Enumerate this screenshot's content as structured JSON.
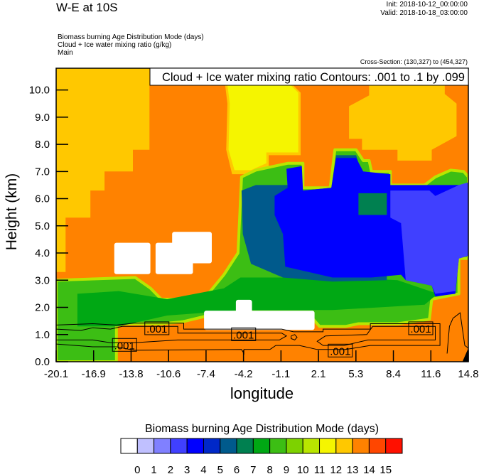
{
  "header": {
    "title": "W-E at 10S",
    "init": "Init: 2018-10-12_00:00:00",
    "valid": "Valid: 2018-10-18_03:00:00",
    "fields": [
      "Biomass burning Age Distribution Mode   (days)",
      "Cloud + Ice water mixing ratio   (g/kg)",
      "Main"
    ],
    "cross_section": "Cross-Section: (130,327) to (454,327)"
  },
  "chart_data": {
    "type": "heatmap",
    "title": "",
    "contour_title": "Cloud + Ice water mixing ratio Contours: .001 to .1 by .099",
    "xlabel": "longitude",
    "ylabel": "Height (km)",
    "xlim": [
      -20.1,
      14.8
    ],
    "ylim": [
      0.0,
      10.8
    ],
    "xticks": [
      "-20.1",
      "-16.9",
      "-13.8",
      "-10.6",
      "-7.4",
      "-4.2",
      "-1.1",
      "2.1",
      "5.3",
      "8.4",
      "11.6",
      "14.8"
    ],
    "yticks": [
      "0.0",
      "1.0",
      "2.0",
      "3.0",
      "4.0",
      "5.0",
      "6.0",
      "7.0",
      "8.0",
      "9.0",
      "10.0"
    ],
    "background_color": "#ff8200",
    "colorbar": {
      "title": "Biomass burning Age Distribution Mode  (days)",
      "labels": [
        "0",
        "1",
        "2",
        "3",
        "4",
        "5",
        "6",
        "7",
        "8",
        "9",
        "10",
        "11",
        "12",
        "13",
        "14",
        "15"
      ],
      "colors": [
        "#ffffff",
        "#c0c0ff",
        "#8080ff",
        "#4040ff",
        "#0000ff",
        "#0028c8",
        "#005a8c",
        "#008050",
        "#00a814",
        "#3cbe14",
        "#7dd200",
        "#b9e600",
        "#f5f500",
        "#ffc800",
        "#ff8200",
        "#ff4600",
        "#ff1000"
      ]
    },
    "regions": [
      {
        "color": "#ffc800",
        "points": [
          [
            -20.1,
            10.8
          ],
          [
            -12.2,
            10.8
          ],
          [
            -12.2,
            7.8
          ],
          [
            -13.6,
            7.8
          ],
          [
            -13.6,
            7.0
          ],
          [
            -16.0,
            7.0
          ],
          [
            -16.0,
            6.3
          ],
          [
            -17.2,
            6.3
          ],
          [
            -17.2,
            5.3
          ],
          [
            -19.3,
            5.3
          ],
          [
            -19.3,
            3.3
          ],
          [
            -20.1,
            3.3
          ]
        ]
      },
      {
        "color": "#ffc800",
        "points": [
          [
            -5.8,
            10.2
          ],
          [
            -0.1,
            10.2
          ],
          [
            0.6,
            9.9
          ],
          [
            0.6,
            7.6
          ],
          [
            -2.1,
            7.6
          ],
          [
            -2.1,
            7.2
          ],
          [
            -3.4,
            6.9
          ],
          [
            -5.2,
            6.9
          ],
          [
            -5.7,
            7.8
          ],
          [
            -5.6,
            9.5
          ]
        ]
      },
      {
        "color": "#f5f500",
        "points": [
          [
            -5.6,
            10.2
          ],
          [
            -0.3,
            10.2
          ],
          [
            0.4,
            9.9
          ],
          [
            0.4,
            7.7
          ],
          [
            -2.3,
            7.7
          ],
          [
            -2.3,
            7.3
          ],
          [
            -3.6,
            7.05
          ],
          [
            -5.0,
            7.05
          ],
          [
            -5.5,
            7.8
          ],
          [
            -5.4,
            9.5
          ]
        ]
      },
      {
        "color": "#ffc800",
        "points": [
          [
            6.4,
            10.2
          ],
          [
            12.8,
            10.2
          ],
          [
            12.8,
            9.85
          ],
          [
            13.8,
            9.5
          ],
          [
            13.8,
            8.3
          ],
          [
            11.7,
            7.8
          ],
          [
            11.7,
            7.4
          ],
          [
            8.8,
            7.4
          ],
          [
            8.8,
            7.8
          ],
          [
            5.8,
            7.8
          ],
          [
            5.8,
            8.2
          ],
          [
            4.7,
            8.2
          ],
          [
            4.7,
            9.4
          ],
          [
            6.4,
            9.8
          ]
        ]
      },
      {
        "color": "#3cbe14",
        "edge": "#b9e600",
        "points": [
          [
            -20.1,
            3.0
          ],
          [
            -13.4,
            3.1
          ],
          [
            -12.1,
            2.7
          ],
          [
            -11.2,
            2.3
          ],
          [
            -7.6,
            2.3
          ],
          [
            -5.9,
            3.2
          ],
          [
            -4.7,
            4.0
          ],
          [
            -4.4,
            6.8
          ],
          [
            -3.2,
            7.05
          ],
          [
            -0.5,
            7.3
          ],
          [
            0.8,
            7.3
          ],
          [
            0.8,
            6.4
          ],
          [
            3.1,
            6.4
          ],
          [
            3.5,
            7.8
          ],
          [
            5.3,
            7.8
          ],
          [
            5.9,
            7.4
          ],
          [
            6.4,
            7.4
          ],
          [
            6.6,
            7.0
          ],
          [
            8.2,
            7.0
          ],
          [
            8.2,
            6.5
          ],
          [
            11.1,
            6.5
          ],
          [
            12.0,
            6.8
          ],
          [
            13.3,
            7.05
          ],
          [
            14.4,
            7.0
          ],
          [
            14.8,
            6.8
          ],
          [
            14.8,
            3.8
          ],
          [
            14.0,
            3.8
          ],
          [
            14.0,
            2.5
          ],
          [
            11.7,
            2.3
          ],
          [
            11.5,
            1.56
          ],
          [
            8.8,
            1.4
          ],
          [
            5.5,
            1.4
          ],
          [
            4.4,
            1.3
          ],
          [
            2.2,
            1.3
          ],
          [
            1.5,
            1.65
          ],
          [
            -7.2,
            1.7
          ],
          [
            -9.4,
            1.47
          ],
          [
            -11.2,
            1.4
          ],
          [
            -15.0,
            1.4
          ],
          [
            -15.0,
            0.0
          ],
          [
            -20.1,
            0.0
          ]
        ]
      },
      {
        "color": "#00a814",
        "points": [
          [
            -18.3,
            2.5
          ],
          [
            -14.8,
            2.6
          ],
          [
            -10.7,
            2.3
          ],
          [
            -5.9,
            2.7
          ],
          [
            -4.5,
            3.1
          ],
          [
            4.4,
            3.1
          ],
          [
            8.8,
            3.0
          ],
          [
            12.2,
            2.5
          ],
          [
            11.1,
            2.1
          ],
          [
            3.3,
            1.9
          ],
          [
            -4.5,
            1.9
          ],
          [
            -10.7,
            1.7
          ],
          [
            -14.8,
            1.3
          ],
          [
            -18.3,
            1.3
          ]
        ]
      },
      {
        "color": "#005a8c",
        "points": [
          [
            -4.4,
            6.3
          ],
          [
            -3.2,
            6.5
          ],
          [
            -0.5,
            6.5
          ],
          [
            0.8,
            6.3
          ],
          [
            3.2,
            6.4
          ],
          [
            3.6,
            7.6
          ],
          [
            5.3,
            7.6
          ],
          [
            5.8,
            6.9
          ],
          [
            5.8,
            5.4
          ],
          [
            7.9,
            5.4
          ],
          [
            7.9,
            3.0
          ],
          [
            3.3,
            2.95
          ],
          [
            -0.9,
            3.1
          ],
          [
            -3.6,
            3.6
          ],
          [
            -4.3,
            4.7
          ]
        ]
      },
      {
        "color": "#0000ff",
        "points": [
          [
            -0.6,
            7.1
          ],
          [
            0.7,
            7.2
          ],
          [
            0.8,
            6.3
          ],
          [
            3.2,
            6.4
          ],
          [
            3.6,
            7.5
          ],
          [
            5.3,
            7.5
          ],
          [
            5.9,
            7.0
          ],
          [
            8.2,
            6.9
          ],
          [
            8.2,
            6.5
          ],
          [
            14.8,
            6.5
          ],
          [
            14.8,
            3.9
          ],
          [
            14.0,
            3.8
          ],
          [
            13.7,
            2.5
          ],
          [
            12.0,
            2.4
          ],
          [
            11.7,
            2.8
          ],
          [
            9.5,
            3.0
          ],
          [
            9.1,
            3.2
          ],
          [
            6.6,
            3.1
          ],
          [
            3.3,
            3.1
          ],
          [
            -0.7,
            3.5
          ],
          [
            -0.9,
            4.7
          ],
          [
            -1.6,
            5.4
          ],
          [
            -1.6,
            6.1
          ],
          [
            -0.5,
            6.4
          ]
        ]
      },
      {
        "color": "#008050",
        "points": [
          [
            5.5,
            6.2
          ],
          [
            7.9,
            6.2
          ],
          [
            7.9,
            5.4
          ],
          [
            5.5,
            5.4
          ]
        ]
      },
      {
        "color": "#4040ff",
        "points": [
          [
            8.2,
            6.3
          ],
          [
            11.5,
            6.3
          ],
          [
            12.0,
            6.1
          ],
          [
            14.0,
            6.5
          ],
          [
            14.8,
            6.6
          ],
          [
            14.8,
            3.9
          ],
          [
            14.0,
            3.8
          ],
          [
            13.7,
            2.6
          ],
          [
            12.0,
            2.5
          ],
          [
            11.7,
            2.8
          ],
          [
            9.5,
            3.0
          ],
          [
            9.1,
            5.1
          ],
          [
            8.2,
            5.3
          ]
        ]
      },
      {
        "color": "#ffffff",
        "points": [
          [
            -15.0,
            4.3
          ],
          [
            -12.3,
            4.3
          ],
          [
            -12.3,
            3.3
          ],
          [
            -15.0,
            3.3
          ]
        ]
      },
      {
        "color": "#ffffff",
        "points": [
          [
            -11.5,
            4.3
          ],
          [
            -8.7,
            4.3
          ],
          [
            -8.7,
            3.3
          ],
          [
            -11.5,
            3.3
          ]
        ]
      },
      {
        "color": "#ffffff",
        "points": [
          [
            -10.1,
            4.7
          ],
          [
            -7.1,
            4.7
          ],
          [
            -7.1,
            3.7
          ],
          [
            -10.1,
            3.7
          ]
        ]
      },
      {
        "color": "#ffffff",
        "points": [
          [
            -7.4,
            1.8
          ],
          [
            1.6,
            1.8
          ],
          [
            1.6,
            1.25
          ],
          [
            -7.4,
            1.25
          ]
        ]
      },
      {
        "color": "#ffffff",
        "points": [
          [
            -4.7,
            2.2
          ],
          [
            -3.7,
            2.2
          ],
          [
            -3.7,
            1.7
          ],
          [
            -4.7,
            1.7
          ]
        ]
      },
      {
        "color": "#000000",
        "points": [
          [
            14.3,
            0.0
          ],
          [
            14.8,
            0.0
          ],
          [
            14.8,
            0.5
          ]
        ]
      }
    ],
    "contours": [
      {
        "level": ".001",
        "points": [
          [
            -20.1,
            1.35
          ],
          [
            -17,
            1.4
          ],
          [
            -15,
            1.35
          ],
          [
            -13.5,
            1.42
          ],
          [
            -9.3,
            1.42
          ],
          [
            -9.3,
            1.2
          ],
          [
            -1,
            1.2
          ],
          [
            0,
            1.1
          ],
          [
            2.5,
            1.1
          ],
          [
            2.5,
            1.2
          ],
          [
            6.5,
            1.2
          ],
          [
            6.5,
            1.4
          ],
          [
            12.4,
            1.4
          ],
          [
            12.4,
            0.6
          ],
          [
            6.5,
            0.6
          ],
          [
            4.4,
            0.45
          ],
          [
            2.0,
            0.45
          ],
          [
            0.5,
            0.6
          ],
          [
            -1.5,
            0.6
          ],
          [
            -2,
            0.45
          ],
          [
            -4.2,
            0.45
          ],
          [
            -4.2,
            0.3
          ],
          [
            -4.4,
            0.45
          ],
          [
            -13.5,
            0.42
          ],
          [
            -15,
            0.55
          ],
          [
            -17,
            0.55
          ],
          [
            -20.1,
            0.65
          ]
        ]
      },
      {
        "level": ".001",
        "points": [
          [
            -20.1,
            1.2
          ],
          [
            -18,
            1.15
          ],
          [
            -17,
            1.25
          ],
          [
            -15.5,
            1.2
          ],
          [
            -14.5,
            1.3
          ],
          [
            -9.8,
            1.3
          ],
          [
            -9.8,
            1.05
          ],
          [
            -1,
            1.05
          ],
          [
            -0.6,
            0.95
          ],
          [
            -1.2,
            0.8
          ],
          [
            -9.8,
            0.8
          ],
          [
            -13.5,
            0.7
          ],
          [
            -15.5,
            0.7
          ],
          [
            -17,
            0.8
          ],
          [
            -20.1,
            0.8
          ]
        ]
      },
      {
        "level": ".001",
        "points": [
          [
            2.7,
            0.95
          ],
          [
            6.2,
            1.0
          ],
          [
            6.7,
            1.3
          ],
          [
            12.0,
            1.3
          ],
          [
            12.0,
            0.8
          ],
          [
            6.3,
            0.8
          ],
          [
            4.3,
            0.6
          ],
          [
            2.5,
            0.6
          ],
          [
            2.0,
            0.75
          ],
          [
            2.7,
            0.95
          ]
        ]
      },
      {
        "level": ".001",
        "points": [
          [
            13.0,
            0.3
          ],
          [
            13.2,
            1.3
          ],
          [
            13.5,
            1.6
          ],
          [
            14.1,
            1.8
          ],
          [
            14.3,
            1.2
          ],
          [
            14.5,
            0.6
          ],
          [
            14.8,
            0.5
          ]
        ]
      },
      {
        "level": ".001",
        "points": [
          [
            -0.2,
            0.95
          ],
          [
            0.1,
            1.0
          ],
          [
            0.3,
            0.9
          ],
          [
            0.1,
            0.8
          ],
          [
            -0.2,
            0.85
          ],
          [
            -0.2,
            0.95
          ]
        ]
      }
    ],
    "contour_labels": [
      {
        "text": ".001",
        "x": -11.57,
        "y": 1.23
      },
      {
        "text": ".001",
        "x": -14.31,
        "y": 0.62
      },
      {
        "text": ".001",
        "x": -4.23,
        "y": 1.01
      },
      {
        "text": ".001",
        "x": 3.96,
        "y": 0.41
      },
      {
        "text": ".001",
        "x": 10.77,
        "y": 1.23
      }
    ]
  }
}
